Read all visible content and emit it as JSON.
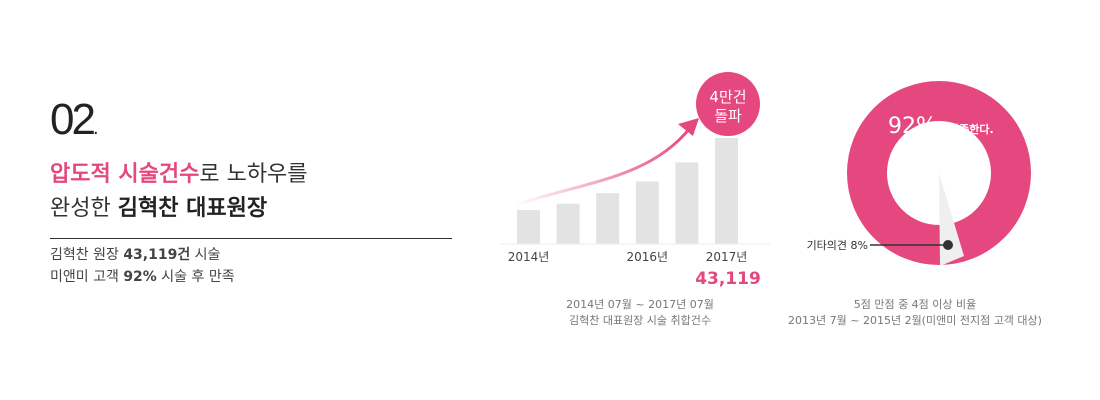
{
  "section": {
    "number": "02",
    "dot": "."
  },
  "headline": {
    "line1_highlight": "압도적 시술건수",
    "line1_rest": "로 노하우를",
    "line2_normal": "완성한 ",
    "line2_bold": "김혁찬 대표원장"
  },
  "stats": {
    "line1_prefix": "김혁찬 원장 ",
    "line1_value": "43,119건",
    "line1_suffix": " 시술",
    "line2_prefix": "미앤미 고객 ",
    "line2_value": "92%",
    "line2_suffix": " 시술 후 만족"
  },
  "growth_chart": {
    "badge_line1": "4만건",
    "badge_line2": "돌파",
    "total_value": "43,119",
    "caption_line1": "2014년 07월 ~ 2017년 07월",
    "caption_line2": "김혁찬 대표원장 시술 취합건수"
  },
  "satisfaction": {
    "value_pct": "92%",
    "value_label": "만족한다.",
    "other_label": "기타의견 8%",
    "caption_line1": "5점 만점 중 4점 이상 비율",
    "caption_line2": "2013년 7월 ~ 2015년 2월(미앤미 전지점 고객 대상)"
  },
  "colors": {
    "accent": "#e5487f",
    "bar": "#e3e3e3",
    "text": "#333333"
  },
  "chart_data": {
    "type": "bar",
    "categories": [
      "2014년",
      "",
      "",
      "2016년",
      "",
      "2017년"
    ],
    "values": [
      32,
      38,
      48,
      59,
      77,
      100
    ],
    "xlabel": "",
    "ylabel": ""
  }
}
